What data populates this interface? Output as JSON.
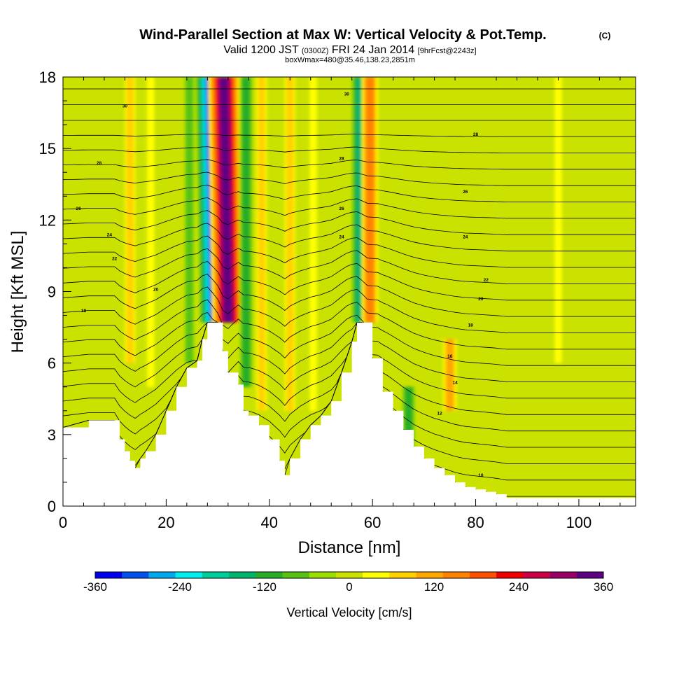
{
  "chart_data": {
    "type": "heatmap",
    "title": "Wind-Parallel Section at Max W: Vertical Velocity & Pot.Temp.",
    "title_mark": "(C)",
    "subtitle_parts": [
      "Valid 1200 JST",
      "(0300Z)",
      "FRI 24 Jan 2014",
      "[9hrFcst@2243z]"
    ],
    "subtitle2": "boxWmax=480@35.46,138.23,2851m",
    "xlabel": "Distance [nm]",
    "ylabel": "Height [Kft MSL]",
    "xlim": [
      0,
      111
    ],
    "ylim": [
      0,
      18
    ],
    "x_ticks": [
      "0",
      "20",
      "40",
      "60",
      "80",
      "100"
    ],
    "x_tick_values": [
      0,
      20,
      40,
      60,
      80,
      100
    ],
    "y_ticks": [
      "0",
      "3",
      "6",
      "9",
      "12",
      "15",
      "18"
    ],
    "y_tick_values": [
      0,
      3,
      6,
      9,
      12,
      15,
      18
    ],
    "colorbar": {
      "label": "Vertical Velocity [cm/s]",
      "range": [
        -360,
        360
      ],
      "tick_labels": [
        "-360",
        "-240",
        "-120",
        "0",
        "120",
        "240",
        "360"
      ],
      "tick_values": [
        -360,
        -240,
        -120,
        0,
        120,
        240,
        360
      ],
      "colors": [
        "#0000ee",
        "#0050ee",
        "#00a8ee",
        "#00eeee",
        "#00ce9a",
        "#00b46e",
        "#28ae28",
        "#58c212",
        "#9ade00",
        "#cbe200",
        "#ffff00",
        "#ffd200",
        "#ffa800",
        "#ff8200",
        "#ff4f00",
        "#ee0000",
        "#cc0044",
        "#990066",
        "#5e0082"
      ]
    },
    "terrain_profile": {
      "x": [
        0,
        5,
        10,
        11,
        12,
        13,
        14,
        15,
        16,
        18,
        20,
        22,
        24,
        26,
        27,
        28,
        30,
        31,
        32,
        34,
        35,
        36,
        38,
        40,
        42,
        43,
        44,
        46,
        48,
        50,
        52,
        54,
        56,
        57,
        58,
        60,
        62,
        64,
        66,
        68,
        70,
        72,
        74,
        76,
        78,
        80,
        82,
        84,
        86,
        90,
        95,
        100,
        105,
        111
      ],
      "height_kft": [
        3.3,
        3.6,
        3.6,
        2.8,
        2.3,
        1.9,
        1.6,
        2.0,
        2.3,
        3.0,
        4.0,
        5.0,
        5.8,
        6.1,
        7.0,
        7.7,
        7.7,
        6.5,
        5.6,
        5.1,
        4.0,
        3.8,
        3.4,
        2.8,
        1.9,
        1.3,
        2.0,
        2.8,
        3.4,
        3.8,
        4.4,
        5.6,
        6.9,
        7.7,
        7.7,
        6.2,
        4.8,
        4.0,
        3.2,
        2.5,
        2.0,
        1.6,
        1.3,
        1.0,
        0.8,
        0.7,
        0.6,
        0.5,
        0.35,
        0.35,
        0.35,
        0.35,
        0.35,
        0.35
      ]
    },
    "vertical_velocity_features": [
      {
        "x": 29.5,
        "bottom_kft": 7.7,
        "top_kft": 18,
        "value": -330
      },
      {
        "x": 32.0,
        "bottom_kft": 7.7,
        "top_kft": 18,
        "value": 360
      },
      {
        "x": 35.5,
        "bottom_kft": 5.0,
        "top_kft": 18,
        "value": -120
      },
      {
        "x": 57.5,
        "bottom_kft": 7.7,
        "top_kft": 18,
        "value": -150
      },
      {
        "x": 59.5,
        "bottom_kft": 7.7,
        "top_kft": 18,
        "value": 150
      },
      {
        "x": 13.0,
        "bottom_kft": 6.0,
        "top_kft": 18,
        "value": 90
      },
      {
        "x": 17.0,
        "bottom_kft": 5.0,
        "top_kft": 18,
        "value": 40
      },
      {
        "x": 24.5,
        "bottom_kft": 6.0,
        "top_kft": 18,
        "value": -80
      },
      {
        "x": 38.5,
        "bottom_kft": 4.0,
        "top_kft": 18,
        "value": 90
      },
      {
        "x": 44.0,
        "bottom_kft": 4.0,
        "top_kft": 18,
        "value": 60
      },
      {
        "x": 48.5,
        "bottom_kft": 4.0,
        "top_kft": 18,
        "value": 40
      },
      {
        "x": 67.0,
        "bottom_kft": 2.5,
        "top_kft": 5.0,
        "value": -100
      },
      {
        "x": 75.0,
        "bottom_kft": 4.0,
        "top_kft": 7.0,
        "value": 110
      },
      {
        "x": 96.0,
        "bottom_kft": 6.0,
        "top_kft": 18,
        "value": 30
      }
    ],
    "theta_contour_labels": [
      {
        "x": 12,
        "y": 16.8,
        "text": "30"
      },
      {
        "x": 7,
        "y": 14.4,
        "text": "28"
      },
      {
        "x": 3,
        "y": 12.5,
        "text": "26"
      },
      {
        "x": 9,
        "y": 11.4,
        "text": "24"
      },
      {
        "x": 10,
        "y": 10.4,
        "text": "22"
      },
      {
        "x": 18,
        "y": 9.1,
        "text": "20"
      },
      {
        "x": 4,
        "y": 8.2,
        "text": "18"
      },
      {
        "x": 55,
        "y": 17.3,
        "text": "30"
      },
      {
        "x": 54,
        "y": 14.6,
        "text": "28"
      },
      {
        "x": 54,
        "y": 12.5,
        "text": "26"
      },
      {
        "x": 54,
        "y": 11.3,
        "text": "24"
      },
      {
        "x": 80,
        "y": 15.6,
        "text": "28"
      },
      {
        "x": 78,
        "y": 13.2,
        "text": "26"
      },
      {
        "x": 78,
        "y": 11.3,
        "text": "24"
      },
      {
        "x": 82,
        "y": 9.5,
        "text": "22"
      },
      {
        "x": 81,
        "y": 8.7,
        "text": "20"
      },
      {
        "x": 79,
        "y": 7.6,
        "text": "18"
      },
      {
        "x": 75,
        "y": 6.3,
        "text": "16"
      },
      {
        "x": 76,
        "y": 5.2,
        "text": "14"
      },
      {
        "x": 73,
        "y": 3.9,
        "text": "12"
      },
      {
        "x": 81,
        "y": 1.3,
        "text": "10"
      }
    ]
  }
}
